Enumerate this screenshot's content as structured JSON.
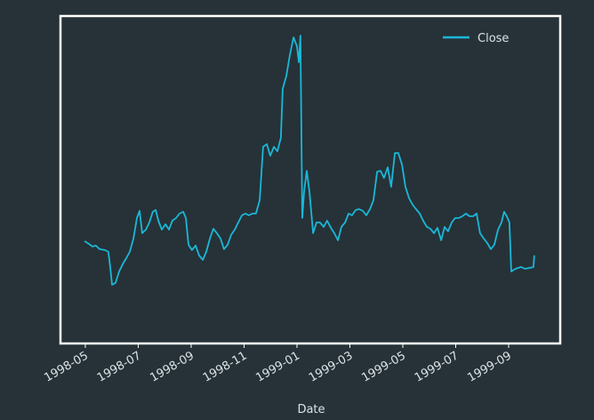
{
  "chart_data": {
    "type": "line",
    "x_label": "Date",
    "xlim": [
      -0.94,
      17.95
    ],
    "ylim": [
      0,
      368
    ],
    "xticks": [
      {
        "value": 0,
        "label": "1998-05"
      },
      {
        "value": 2,
        "label": "1998-07"
      },
      {
        "value": 4,
        "label": "1998-09"
      },
      {
        "value": 6,
        "label": "1998-11"
      },
      {
        "value": 8,
        "label": "1999-01"
      },
      {
        "value": 10,
        "label": "1999-03"
      },
      {
        "value": 12,
        "label": "1999-05"
      },
      {
        "value": 14,
        "label": "1999-07"
      },
      {
        "value": 16,
        "label": "1999-09"
      }
    ],
    "legend": "upper right",
    "x": [
      -0.03,
      0.13,
      0.27,
      0.4,
      0.54,
      0.74,
      0.87,
      0.94,
      1.01,
      1.14,
      1.28,
      1.41,
      1.55,
      1.68,
      1.82,
      1.95,
      2.05,
      2.15,
      2.29,
      2.42,
      2.55,
      2.66,
      2.76,
      2.89,
      3.03,
      3.16,
      3.29,
      3.43,
      3.56,
      3.7,
      3.8,
      3.9,
      4.03,
      4.17,
      4.3,
      4.44,
      4.57,
      4.71,
      4.84,
      4.97,
      5.11,
      5.24,
      5.38,
      5.51,
      5.65,
      5.78,
      5.92,
      6.05,
      6.18,
      6.32,
      6.45,
      6.59,
      6.72,
      6.86,
      6.99,
      7.13,
      7.26,
      7.39,
      7.46,
      7.6,
      7.73,
      7.87,
      8.0,
      8.07,
      8.13,
      8.2,
      8.27,
      8.37,
      8.47,
      8.61,
      8.74,
      8.87,
      9.01,
      9.14,
      9.28,
      9.41,
      9.55,
      9.68,
      9.82,
      9.95,
      10.08,
      10.22,
      10.35,
      10.49,
      10.62,
      10.76,
      10.89,
      11.03,
      11.16,
      11.29,
      11.43,
      11.56,
      11.7,
      11.83,
      11.97,
      12.1,
      12.24,
      12.37,
      12.5,
      12.64,
      12.77,
      12.91,
      13.04,
      13.18,
      13.31,
      13.45,
      13.58,
      13.71,
      13.85,
      13.98,
      14.12,
      14.25,
      14.39,
      14.52,
      14.66,
      14.79,
      14.92,
      15.06,
      15.19,
      15.33,
      15.46,
      15.6,
      15.73,
      15.83,
      15.93,
      16.03,
      16.1,
      16.27,
      16.47,
      16.61,
      16.81,
      16.94,
      16.97
    ],
    "series": [
      {
        "name": "Close",
        "color": "#1ab8d8",
        "values": [
          115,
          112,
          109,
          110,
          106,
          105,
          103,
          86,
          66,
          68,
          81,
          89,
          96,
          103,
          118,
          141,
          149,
          124,
          128,
          136,
          148,
          150,
          138,
          128,
          134,
          128,
          138,
          141,
          146,
          148,
          141,
          111,
          105,
          110,
          99,
          94,
          103,
          118,
          129,
          124,
          118,
          106,
          111,
          122,
          128,
          136,
          144,
          146,
          144,
          146,
          146,
          161,
          221,
          224,
          211,
          221,
          216,
          231,
          286,
          301,
          324,
          344,
          334,
          316,
          346,
          141,
          171,
          194,
          171,
          124,
          136,
          136,
          131,
          138,
          130,
          124,
          116,
          131,
          136,
          146,
          144,
          150,
          151,
          149,
          144,
          151,
          161,
          193,
          194,
          186,
          198,
          176,
          214,
          214,
          201,
          176,
          163,
          156,
          151,
          146,
          138,
          131,
          129,
          124,
          130,
          116,
          131,
          126,
          136,
          141,
          141,
          143,
          146,
          143,
          143,
          146,
          124,
          118,
          113,
          106,
          111,
          128,
          136,
          148,
          143,
          136,
          81,
          84,
          86,
          84,
          85,
          86,
          99
        ]
      }
    ]
  }
}
